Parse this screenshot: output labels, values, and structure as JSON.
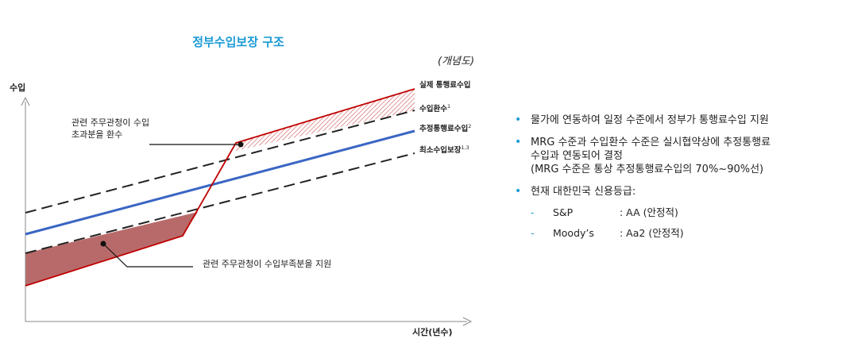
{
  "title": "정부수입보장 구조",
  "concept_note": "(개념도)",
  "axes": {
    "y_label": "수입",
    "x_label": "시간(년수)"
  },
  "lines": {
    "actual": "실제 통행료수입",
    "redemption": "수입환수",
    "redemption_sup": "1",
    "estimated": "추정통행료수입",
    "estimated_sup": "2",
    "minimum": "최소수입보장",
    "minimum_sup": "1,3"
  },
  "annotations": {
    "excess_line1": "관련 주무관청이 수입",
    "excess_line2": "초과분을 환수",
    "shortfall": "관련 주무관청이 수입부족분을 지원"
  },
  "bullets": {
    "b1": "물가에 연동하여 일정 수준에서 정부가 통행료수입 지원",
    "b2_line1": "MRG 수준과 수입환수 수준은 실시협약상에 추정통행료",
    "b2_line2": "수입과 연동되어 결정",
    "b2_line3": "(MRG 수준은 통상 추정통행료수입의 70%~90%선)",
    "b3": "현재 대한민국 신용등급:",
    "ratings": [
      {
        "agency": "S&P",
        "rating": ": AA (안정적)"
      },
      {
        "agency": "Moody’s",
        "rating": ": Aa2 (안정적)"
      }
    ]
  },
  "colors": {
    "accent": "#1a9ad6",
    "actual_line": "#c00000",
    "estimated_line": "#3a66c4",
    "shortfall_fill": "#b86a6a"
  }
}
